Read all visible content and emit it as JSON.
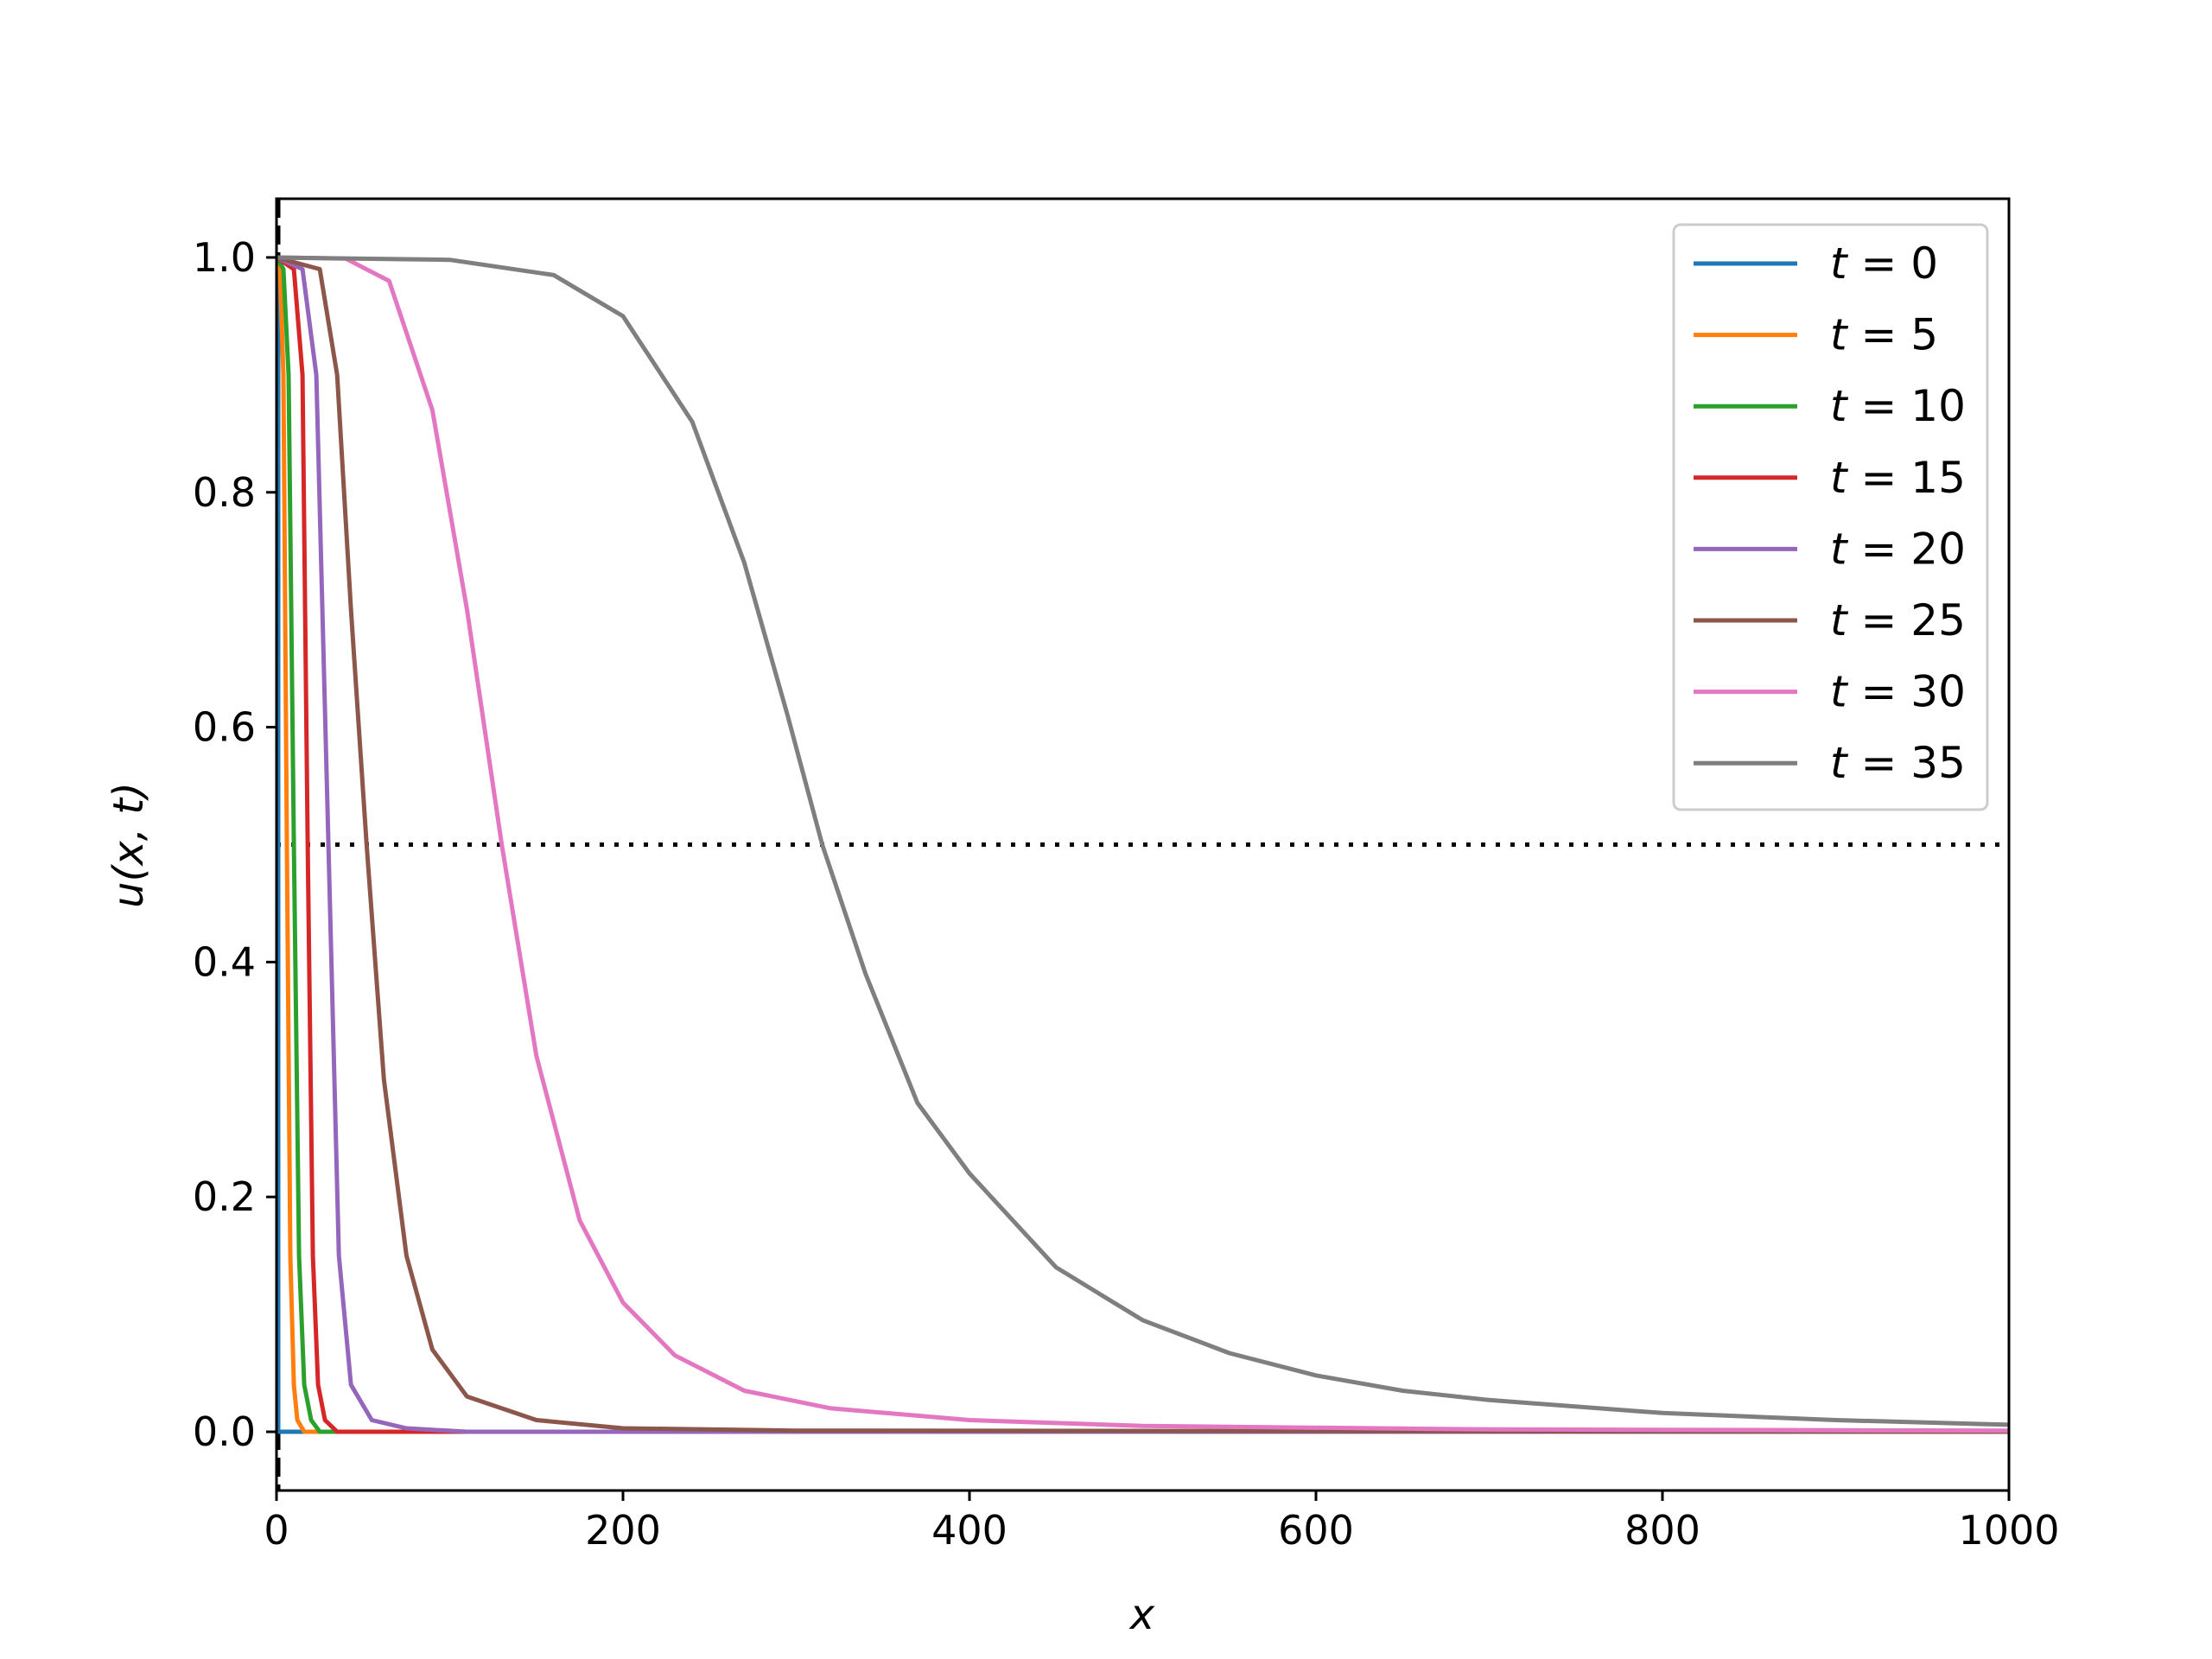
{
  "chart_data": {
    "type": "line",
    "title": "",
    "xlabel": "x",
    "ylabel": "u(x, t)",
    "xlim": [
      0,
      1000
    ],
    "ylim": [
      -0.05,
      1.05
    ],
    "x_ticks": [
      "0",
      "200",
      "400",
      "600",
      "800",
      "1000"
    ],
    "y_ticks": [
      "0.0",
      "0.2",
      "0.4",
      "0.6",
      "0.8",
      "1.0"
    ],
    "grid": false,
    "legend_position": "top-right",
    "reference_lines": [
      {
        "orientation": "horizontal",
        "y": 0.5,
        "style": "dotted",
        "color": "#000000"
      },
      {
        "orientation": "vertical",
        "x": 1,
        "style": "dashed",
        "color": "#000000"
      }
    ],
    "series": [
      {
        "name": "t = 0",
        "color": "#1f77b4",
        "x": [
          0,
          1,
          1,
          1000
        ],
        "y": [
          1,
          1,
          0,
          0
        ]
      },
      {
        "name": "t = 5",
        "color": "#ff7f0e",
        "x": [
          0,
          2,
          4,
          6,
          8,
          10,
          12,
          16,
          1000
        ],
        "y": [
          1.0,
          0.99,
          0.9,
          0.5,
          0.15,
          0.04,
          0.01,
          0.0,
          0.0
        ]
      },
      {
        "name": "t = 10",
        "color": "#2ca02c",
        "x": [
          0,
          4,
          7,
          10,
          13,
          16,
          20,
          25,
          1000
        ],
        "y": [
          1.0,
          0.99,
          0.9,
          0.5,
          0.15,
          0.04,
          0.01,
          0.0,
          0.0
        ]
      },
      {
        "name": "t = 15",
        "color": "#d62728",
        "x": [
          0,
          10,
          15,
          18,
          21,
          24,
          28,
          35,
          1000
        ],
        "y": [
          1.0,
          0.99,
          0.9,
          0.5,
          0.15,
          0.04,
          0.01,
          0.0,
          0.0
        ]
      },
      {
        "name": "t = 20",
        "color": "#9467bd",
        "x": [
          0,
          15,
          23,
          30,
          36,
          43,
          55,
          75,
          110,
          1000
        ],
        "y": [
          1.0,
          0.99,
          0.9,
          0.5,
          0.15,
          0.04,
          0.01,
          0.003,
          0.0,
          0.0
        ]
      },
      {
        "name": "t = 25",
        "color": "#8c564b",
        "x": [
          0,
          25,
          35,
          43,
          52,
          62,
          75,
          90,
          110,
          150,
          200,
          300,
          1000
        ],
        "y": [
          1.0,
          0.99,
          0.9,
          0.7,
          0.5,
          0.3,
          0.15,
          0.07,
          0.03,
          0.01,
          0.003,
          0.001,
          0.0
        ]
      },
      {
        "name": "t = 30",
        "color": "#e377c2",
        "x": [
          0,
          40,
          65,
          90,
          110,
          130,
          150,
          175,
          200,
          230,
          270,
          320,
          400,
          500,
          700,
          1000
        ],
        "y": [
          1.0,
          0.999,
          0.98,
          0.87,
          0.7,
          0.5,
          0.32,
          0.18,
          0.11,
          0.065,
          0.035,
          0.02,
          0.01,
          0.005,
          0.002,
          0.001
        ]
      },
      {
        "name": "t = 35",
        "color": "#7f7f7f",
        "x": [
          0,
          100,
          160,
          200,
          240,
          270,
          295,
          315,
          340,
          370,
          400,
          450,
          500,
          550,
          600,
          650,
          700,
          800,
          900,
          1000
        ],
        "y": [
          1.0,
          0.998,
          0.985,
          0.95,
          0.86,
          0.74,
          0.61,
          0.5,
          0.39,
          0.28,
          0.22,
          0.14,
          0.095,
          0.067,
          0.048,
          0.035,
          0.027,
          0.016,
          0.01,
          0.006
        ]
      }
    ]
  }
}
